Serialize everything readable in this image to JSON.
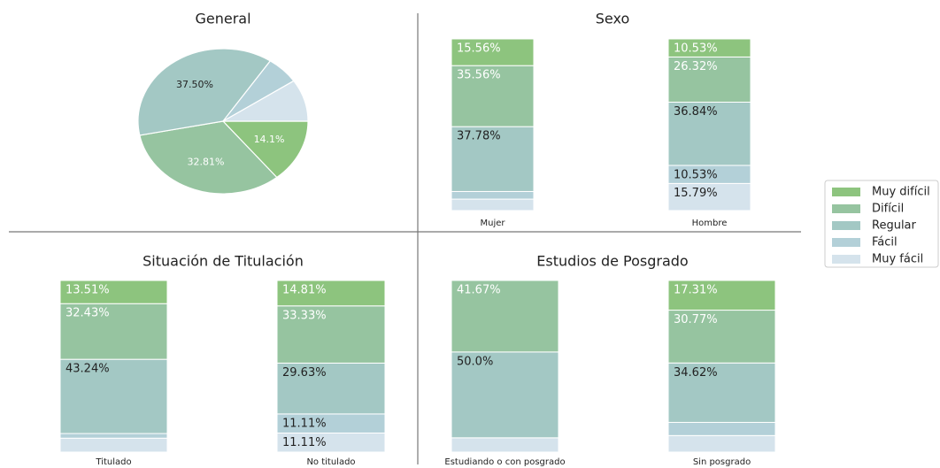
{
  "chart_data": [
    {
      "type": "pie",
      "title": "General",
      "categories": [
        "Muy difícil",
        "Difícil",
        "Regular",
        "Fácil",
        "Muy fácil"
      ],
      "values": [
        14.1,
        32.81,
        37.5,
        6.25,
        9.38
      ],
      "value_labels": [
        "14.1%",
        "32.81%",
        "37.50%",
        null,
        null
      ],
      "colors": [
        "#8dc47e",
        "#96c4a0",
        "#a3c8c4",
        "#b3d0d8",
        "#d5e3ec"
      ]
    },
    {
      "type": "stacked_bar",
      "title": "Sexo",
      "categories": [
        "Mujer",
        "Hombre"
      ],
      "ylim": [
        0,
        100
      ],
      "series": [
        {
          "name": "Muy difícil",
          "color": "#8dc47e",
          "values": [
            15.56,
            10.53
          ],
          "value_labels": [
            "15.56%",
            "10.53%"
          ]
        },
        {
          "name": "Difícil",
          "color": "#96c4a0",
          "values": [
            35.56,
            26.32
          ],
          "value_labels": [
            "35.56%",
            "26.32%"
          ]
        },
        {
          "name": "Regular",
          "color": "#a3c8c4",
          "values": [
            37.78,
            36.84
          ],
          "value_labels": [
            "37.78%",
            "36.84%"
          ]
        },
        {
          "name": "Fácil",
          "color": "#b3d0d8",
          "values": [
            4.44,
            10.53
          ],
          "value_labels": [
            null,
            "10.53%"
          ]
        },
        {
          "name": "Muy fácil",
          "color": "#d5e3ec",
          "values": [
            6.67,
            15.79
          ],
          "value_labels": [
            null,
            "15.79%"
          ]
        }
      ]
    },
    {
      "type": "stacked_bar",
      "title": "Situación de Titulación",
      "categories": [
        "Titulado",
        "No titulado"
      ],
      "ylim": [
        0,
        100
      ],
      "series": [
        {
          "name": "Muy difícil",
          "color": "#8dc47e",
          "values": [
            13.51,
            14.81
          ],
          "value_labels": [
            "13.51%",
            "14.81%"
          ]
        },
        {
          "name": "Difícil",
          "color": "#96c4a0",
          "values": [
            32.43,
            33.33
          ],
          "value_labels": [
            "32.43%",
            "33.33%"
          ]
        },
        {
          "name": "Regular",
          "color": "#a3c8c4",
          "values": [
            43.24,
            29.63
          ],
          "value_labels": [
            "43.24%",
            "29.63%"
          ]
        },
        {
          "name": "Fácil",
          "color": "#b3d0d8",
          "values": [
            2.7,
            11.11
          ],
          "value_labels": [
            null,
            "11.11%"
          ]
        },
        {
          "name": "Muy fácil",
          "color": "#d5e3ec",
          "values": [
            8.11,
            11.11
          ],
          "value_labels": [
            null,
            "11.11%"
          ]
        }
      ]
    },
    {
      "type": "stacked_bar",
      "title": "Estudios de Posgrado",
      "categories": [
        "Estudiando o con posgrado",
        "Sin posgrado"
      ],
      "ylim": [
        0,
        100
      ],
      "series": [
        {
          "name": "Muy difícil",
          "color": "#8dc47e",
          "values": [
            0,
            17.31
          ],
          "value_labels": [
            null,
            "17.31%"
          ]
        },
        {
          "name": "Difícil",
          "color": "#96c4a0",
          "values": [
            41.67,
            30.77
          ],
          "value_labels": [
            "41.67%",
            "30.77%"
          ]
        },
        {
          "name": "Regular",
          "color": "#a3c8c4",
          "values": [
            50.0,
            34.62
          ],
          "value_labels": [
            "50.0%",
            "34.62%"
          ]
        },
        {
          "name": "Fácil",
          "color": "#b3d0d8",
          "values": [
            0,
            7.69
          ],
          "value_labels": [
            null,
            null
          ]
        },
        {
          "name": "Muy fácil",
          "color": "#d5e3ec",
          "values": [
            8.33,
            9.62
          ],
          "value_labels": [
            null,
            null
          ]
        }
      ]
    }
  ]
}
